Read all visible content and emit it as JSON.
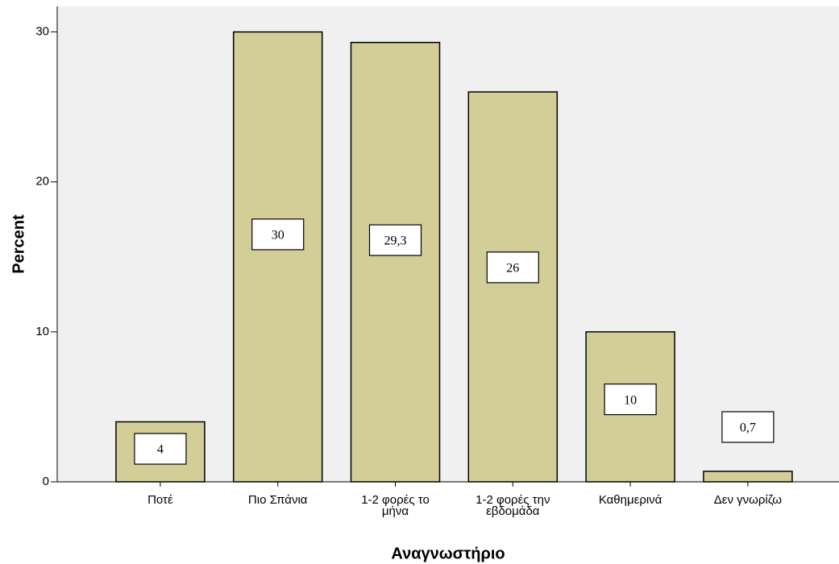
{
  "chart_data": {
    "type": "bar",
    "x_label": "Αναγνωστήριο",
    "y_label": "Percent",
    "categories": [
      "Ποτέ",
      "Πιο Σπάνια",
      "1-2 φορές το\nμήνα",
      "1-2 φορές την\nεβδομάδα",
      "Καθημερινά",
      "Δεν γνωρίζω"
    ],
    "values": [
      4,
      30,
      29.3,
      26,
      10,
      0.7
    ],
    "value_labels": [
      "4",
      "30",
      "29,3",
      "26",
      "10",
      "0,7"
    ],
    "color": "#d3ce97",
    "ylim": [
      0,
      31.7
    ],
    "yticks": [
      0,
      10,
      20,
      30
    ],
    "grid": false
  }
}
